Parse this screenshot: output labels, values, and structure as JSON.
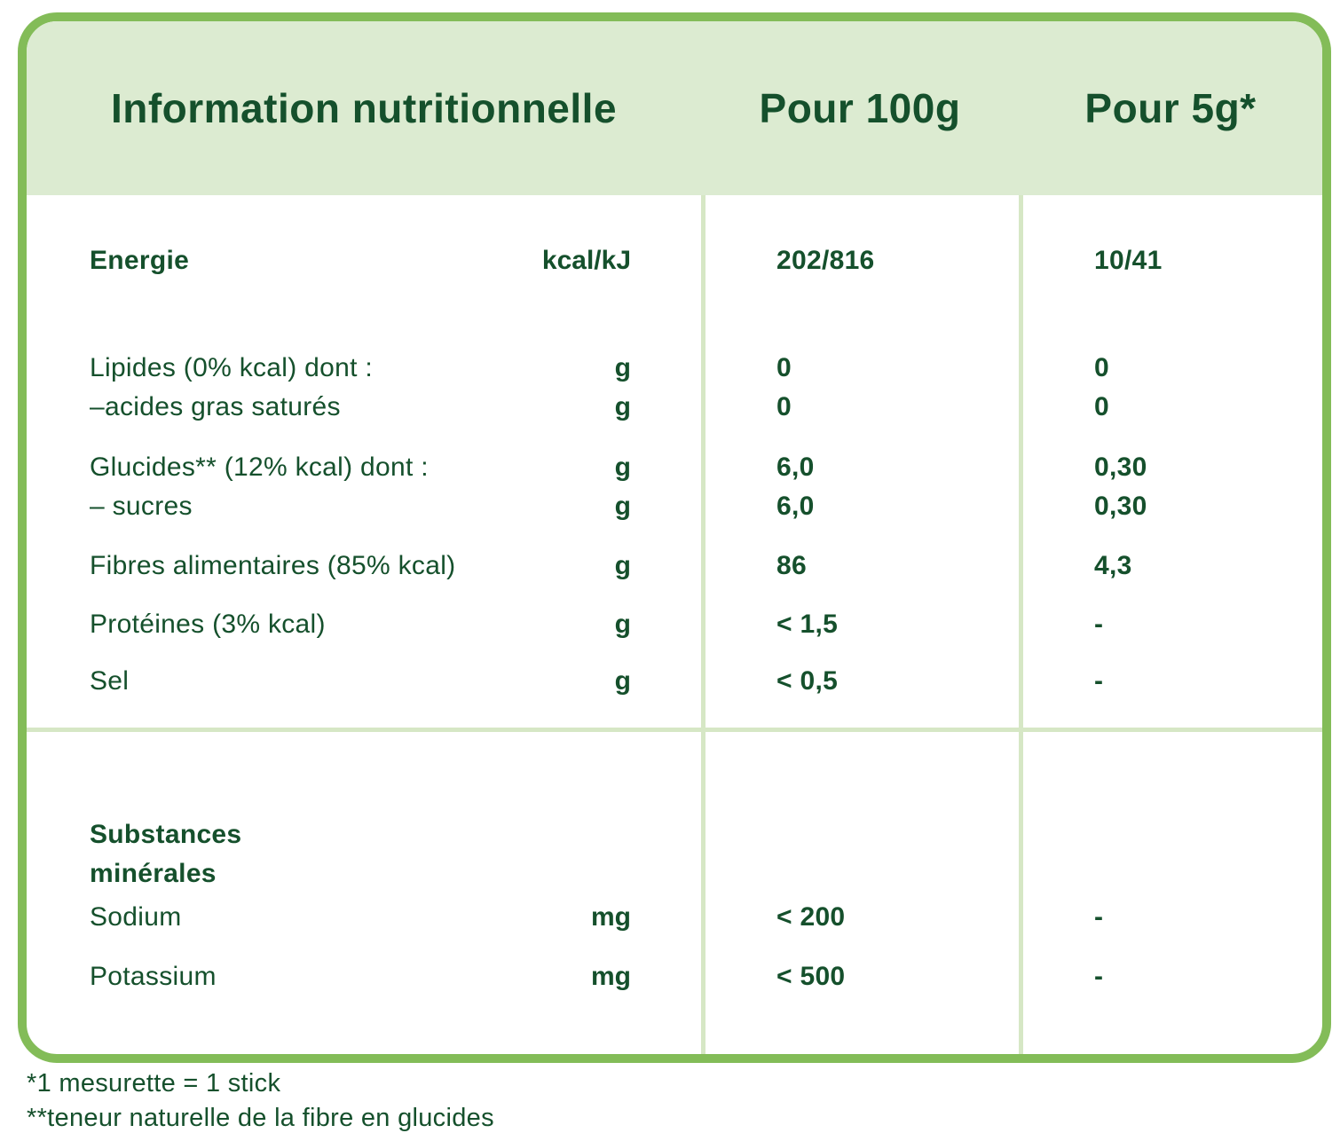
{
  "colors": {
    "border_green": "#83bc58",
    "header_bg": "#dcebd1",
    "divider_green": "#d6e7c5",
    "text_green": "#15502c"
  },
  "table": {
    "header": {
      "title": "Information nutritionnelle",
      "per100_label": "Pour 100g",
      "per5_label": "Pour 5g*"
    },
    "rows": [
      {
        "label": "Energie",
        "unit": "kcal/kJ",
        "per100": "202/816",
        "per5": "10/41"
      },
      {
        "label": "Lipides (0% kcal) dont :",
        "unit": "g",
        "per100": "0",
        "per5": "0"
      },
      {
        "label": "–acides gras saturés",
        "unit": "g",
        "per100": "0",
        "per5": "0"
      },
      {
        "label": "Glucides** (12% kcal) dont :",
        "unit": "g",
        "per100": "6,0",
        "per5": "0,30"
      },
      {
        "label": "– sucres",
        "unit": "g",
        "per100": "6,0",
        "per5": "0,30"
      },
      {
        "label": "Fibres alimentaires (85% kcal)",
        "unit": "g",
        "per100": "86",
        "per5": "4,3"
      },
      {
        "label": "Protéines (3% kcal)",
        "unit": "g",
        "per100": "< 1,5",
        "per5": "-"
      },
      {
        "label": "Sel",
        "unit": "g",
        "per100": "< 0,5",
        "per5": "-"
      }
    ],
    "minerals_section": {
      "title_line1": "Substances",
      "title_line2": "minérales",
      "rows": [
        {
          "label": "Sodium",
          "unit": "mg",
          "per100": "< 200",
          "per5": "-"
        },
        {
          "label": "Potassium",
          "unit": "mg",
          "per100": "< 500",
          "per5": "-"
        }
      ]
    },
    "footnotes": [
      "*1 mesurette = 1 stick",
      "**teneur naturelle de la fibre en glucides"
    ]
  }
}
